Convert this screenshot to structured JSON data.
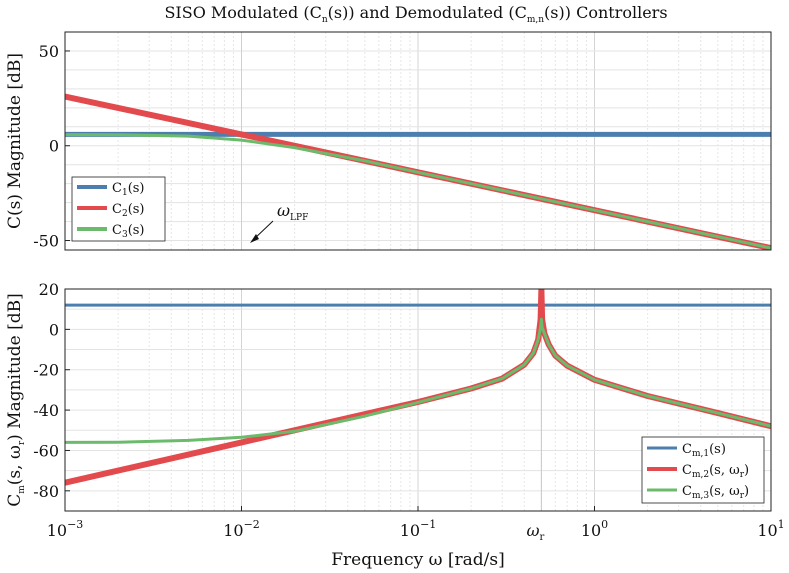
{
  "chart_data": [
    {
      "type": "line",
      "title": "SISO Modulated (C_n(s)) and Demodulated (C_m,n(s)) Controllers",
      "ylabel": "C(s) Magnitude [dB]",
      "xscale": "log",
      "xlim": [
        0.001,
        10
      ],
      "ylim": [
        -55,
        60
      ],
      "yticks": [
        50,
        0,
        -50
      ],
      "annotation": {
        "text": "ω_LPF",
        "x": 0.01,
        "y": -50
      },
      "legend_position": "bottom-left",
      "series": [
        {
          "name": "C1(s)",
          "color": "#4d7fae",
          "width": 5,
          "x": [
            0.001,
            10
          ],
          "y": [
            6,
            6
          ]
        },
        {
          "name": "C2(s)",
          "color": "#e34a4d",
          "width": 6,
          "x": [
            0.001,
            0.01,
            0.1,
            1,
            10
          ],
          "y": [
            26,
            6,
            -14,
            -34,
            -54
          ]
        },
        {
          "name": "C3(s)",
          "color": "#6cbb6c",
          "width": 3,
          "x": [
            0.001,
            0.002,
            0.005,
            0.01,
            0.02,
            0.05,
            0.1,
            0.2,
            0.5,
            1,
            2,
            5,
            10
          ],
          "y": [
            5.9,
            5.8,
            5.1,
            3.0,
            -1.0,
            -8.0,
            -14.0,
            -20.0,
            -28.0,
            -34.0,
            -40.0,
            -48.0,
            -54.0
          ]
        }
      ]
    },
    {
      "type": "line",
      "xlabel": "Frequency ω [rad/s]",
      "ylabel": "C_m(s, ω_r) Magnitude [dB]",
      "xscale": "log",
      "xlim": [
        0.001,
        10
      ],
      "ylim": [
        -90,
        20
      ],
      "yticks": [
        20,
        0,
        -20,
        -40,
        -60,
        -80
      ],
      "xticks": [
        {
          "value": 0.001,
          "base": "10",
          "exp": "−3"
        },
        {
          "value": 0.01,
          "base": "10",
          "exp": "−2"
        },
        {
          "value": 0.1,
          "base": "10",
          "exp": "−1"
        },
        {
          "value": 1,
          "base": "10",
          "exp": "0"
        },
        {
          "value": 10,
          "base": "10",
          "exp": "1"
        }
      ],
      "marker_tick": {
        "label": "ω_r",
        "value": 0.5
      },
      "legend_position": "bottom-right",
      "series": [
        {
          "name": "Cm,1(s)",
          "color": "#4d7fae",
          "width": 3,
          "x": [
            0.001,
            10
          ],
          "y": [
            12,
            12
          ]
        },
        {
          "name": "Cm,2(s, ωr)",
          "color": "#e34a4d",
          "width": 6,
          "x": [
            0.001,
            0.01,
            0.1,
            0.2,
            0.3,
            0.4,
            0.45,
            0.48,
            0.495,
            0.5,
            0.505,
            0.52,
            0.55,
            0.6,
            0.7,
            1,
            2,
            5,
            10
          ],
          "y": [
            -76,
            -56,
            -36,
            -29.3,
            -24.4,
            -17.5,
            -11.8,
            -5,
            5,
            20,
            5,
            -2,
            -7.5,
            -13,
            -18,
            -25,
            -33,
            -41.5,
            -48
          ]
        },
        {
          "name": "Cm,3(s, ωr)",
          "color": "#6cbb6c",
          "width": 3,
          "x": [
            0.001,
            0.002,
            0.005,
            0.01,
            0.02,
            0.05,
            0.1,
            0.2,
            0.3,
            0.4,
            0.45,
            0.48,
            0.495,
            0.5,
            0.505,
            0.52,
            0.55,
            0.6,
            0.7,
            1,
            2,
            5,
            10
          ],
          "y": [
            -56,
            -55.9,
            -55,
            -53.5,
            -50.5,
            -43,
            -36.2,
            -29.3,
            -24.4,
            -17.5,
            -11.8,
            -5,
            1,
            5,
            1,
            -2,
            -7.5,
            -13,
            -18,
            -25,
            -33,
            -41.5,
            -48
          ]
        }
      ]
    }
  ],
  "text": {
    "title_prefix": "SISO Modulated (C",
    "title_sub1": "n",
    "title_mid": "(s)) and Demodulated (C",
    "title_sub2": "m,n",
    "title_suffix": "(s)) Controllers",
    "ylabel1": "C(s) Magnitude [dB]",
    "ylabel2_main": "C",
    "ylabel2_sub": "m",
    "ylabel2_rest": "(s, ω",
    "ylabel2_sub2": "r",
    "ylabel2_end": ") Magnitude [dB]",
    "xlabel": "Frequency ω [rad/s]",
    "ann_main": "ω",
    "ann_sub": "LPF",
    "wr_main": "ω",
    "wr_sub": "r",
    "leg1": [
      {
        "main": "C",
        "sub": "1",
        "rest": "(s)"
      },
      {
        "main": "C",
        "sub": "2",
        "rest": "(s)"
      },
      {
        "main": "C",
        "sub": "3",
        "rest": "(s)"
      }
    ],
    "leg2": [
      {
        "main": "C",
        "sub": "m,1",
        "rest": "(s)"
      },
      {
        "main": "C",
        "sub": "m,2",
        "rest": "(s, ω",
        "sub2": "r",
        "end": ")"
      },
      {
        "main": "C",
        "sub": "m,3",
        "rest": "(s, ω",
        "sub2": "r",
        "end": ")"
      }
    ]
  }
}
